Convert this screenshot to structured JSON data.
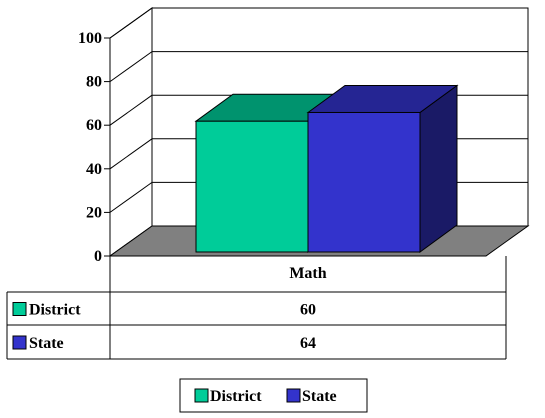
{
  "chart_data": {
    "type": "bar",
    "categories": [
      "Math"
    ],
    "series": [
      {
        "name": "District",
        "values": [
          60
        ],
        "color": "#00CC99"
      },
      {
        "name": "State",
        "values": [
          64
        ],
        "color": "#3333CC"
      }
    ],
    "ylim": [
      0,
      100
    ],
    "yticks": [
      0,
      20,
      40,
      60,
      80,
      100
    ],
    "data_table": true,
    "legend": "bottom",
    "grid": true,
    "style": "3d"
  }
}
